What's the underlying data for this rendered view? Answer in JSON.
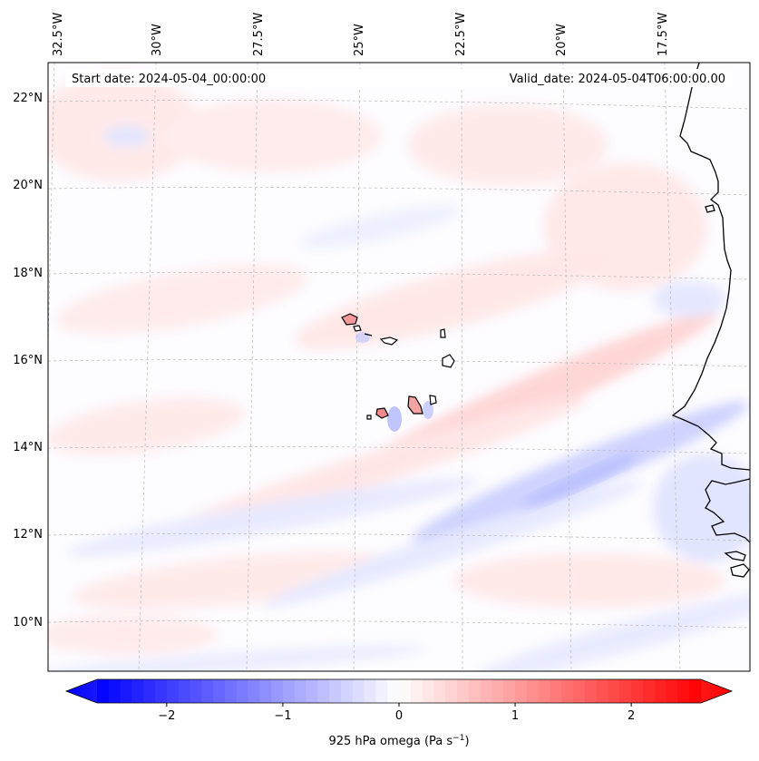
{
  "header": {
    "start_date": "Start date: 2024-05-04_00:00:00",
    "valid_date": "Valid_date: 2024-05-04T06:00:00.00"
  },
  "lon_labels": [
    "32.5°W",
    "30°W",
    "27.5°W",
    "25°W",
    "22.5°W",
    "20°W",
    "17.5°W"
  ],
  "lat_labels": [
    "22°N",
    "20°N",
    "18°N",
    "16°N",
    "14°N",
    "12°N",
    "10°N"
  ],
  "colorbar": {
    "label_text": "925 hPa omega (Pa s",
    "label_sup": "−1",
    "label_close": ")",
    "ticks": [
      "−2",
      "−1",
      "0",
      "1",
      "2"
    ],
    "tick_values": [
      -2,
      -1,
      0,
      1,
      2
    ],
    "range": [
      -2.6,
      2.6
    ],
    "colormap": "bwr",
    "extend": "both"
  },
  "colors": {
    "coastline": "#000000",
    "gridline": "#b8b8b8",
    "negative": "#0000ff",
    "positive": "#ff0000"
  }
}
